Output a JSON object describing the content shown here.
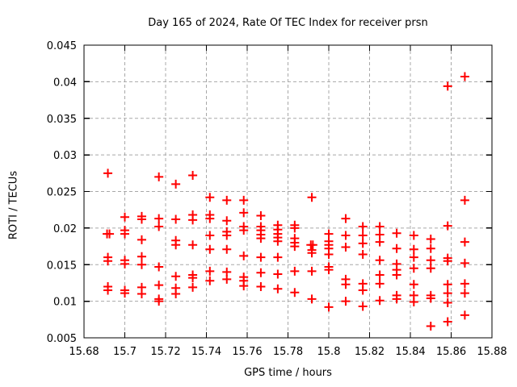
{
  "chart_data": {
    "type": "scatter",
    "title": "Day 165 of 2024, Rate Of TEC Index for receiver prsn",
    "xlabel": "GPS time / hours",
    "ylabel": "ROTI / TECUs",
    "xlim": [
      15.68,
      15.88
    ],
    "ylim": [
      0.005,
      0.045
    ],
    "xticks": [
      15.68,
      15.7,
      15.72,
      15.74,
      15.76,
      15.78,
      15.8,
      15.82,
      15.84,
      15.86,
      15.88
    ],
    "xtick_labels": [
      "15.68",
      "15.7",
      "15.72",
      "15.74",
      "15.76",
      "15.78",
      "15.8",
      "15.82",
      "15.84",
      "15.86",
      "15.88"
    ],
    "yticks": [
      0.005,
      0.01,
      0.015,
      0.02,
      0.025,
      0.03,
      0.035,
      0.04,
      0.045
    ],
    "ytick_labels": [
      "0.005",
      "0.01",
      "0.015",
      "0.02",
      "0.025",
      "0.03",
      "0.035",
      "0.04",
      "0.045"
    ],
    "grid": true,
    "legend": "none",
    "marker": {
      "shape": "plus",
      "color": "#ff0000",
      "size": 11,
      "stroke_width": 2
    },
    "grid_color": "#a8a8a8",
    "border_color": "#000000",
    "points": [
      [
        15.6917,
        0.0275
      ],
      [
        15.6913,
        0.0192
      ],
      [
        15.6925,
        0.0192
      ],
      [
        15.6917,
        0.016
      ],
      [
        15.6917,
        0.0155
      ],
      [
        15.6917,
        0.012
      ],
      [
        15.6917,
        0.0115
      ],
      [
        15.7,
        0.0215
      ],
      [
        15.7,
        0.0197
      ],
      [
        15.7,
        0.0192
      ],
      [
        15.7,
        0.0156
      ],
      [
        15.7,
        0.0151
      ],
      [
        15.7,
        0.0115
      ],
      [
        15.7,
        0.0111
      ],
      [
        15.7083,
        0.0216
      ],
      [
        15.7083,
        0.0212
      ],
      [
        15.7083,
        0.0184
      ],
      [
        15.7083,
        0.0161
      ],
      [
        15.7083,
        0.015
      ],
      [
        15.7083,
        0.0119
      ],
      [
        15.7083,
        0.011
      ],
      [
        15.7167,
        0.027
      ],
      [
        15.7167,
        0.0213
      ],
      [
        15.7167,
        0.0202
      ],
      [
        15.7167,
        0.0147
      ],
      [
        15.7167,
        0.0122
      ],
      [
        15.7167,
        0.0103
      ],
      [
        15.7167,
        0.01
      ],
      [
        15.725,
        0.026
      ],
      [
        15.725,
        0.0212
      ],
      [
        15.725,
        0.0183
      ],
      [
        15.725,
        0.0177
      ],
      [
        15.725,
        0.0134
      ],
      [
        15.725,
        0.0118
      ],
      [
        15.725,
        0.011
      ],
      [
        15.7333,
        0.0272
      ],
      [
        15.7333,
        0.0218
      ],
      [
        15.7333,
        0.0211
      ],
      [
        15.7333,
        0.0177
      ],
      [
        15.7333,
        0.0136
      ],
      [
        15.7333,
        0.0132
      ],
      [
        15.7333,
        0.0119
      ],
      [
        15.7417,
        0.0242
      ],
      [
        15.7417,
        0.0218
      ],
      [
        15.7417,
        0.0213
      ],
      [
        15.7417,
        0.019
      ],
      [
        15.7417,
        0.0171
      ],
      [
        15.7417,
        0.0141
      ],
      [
        15.7417,
        0.0128
      ],
      [
        15.75,
        0.0238
      ],
      [
        15.75,
        0.021
      ],
      [
        15.75,
        0.0195
      ],
      [
        15.75,
        0.019
      ],
      [
        15.75,
        0.0171
      ],
      [
        15.75,
        0.014
      ],
      [
        15.75,
        0.013
      ],
      [
        15.7583,
        0.0238
      ],
      [
        15.7583,
        0.0221
      ],
      [
        15.7583,
        0.0202
      ],
      [
        15.7583,
        0.0197
      ],
      [
        15.7583,
        0.0162
      ],
      [
        15.7583,
        0.0133
      ],
      [
        15.7583,
        0.0128
      ],
      [
        15.7583,
        0.0121
      ],
      [
        15.7667,
        0.0217
      ],
      [
        15.7667,
        0.0202
      ],
      [
        15.7667,
        0.0197
      ],
      [
        15.7667,
        0.0191
      ],
      [
        15.7667,
        0.0186
      ],
      [
        15.7667,
        0.016
      ],
      [
        15.7667,
        0.0139
      ],
      [
        15.7667,
        0.012
      ],
      [
        15.775,
        0.0204
      ],
      [
        15.775,
        0.0198
      ],
      [
        15.775,
        0.0192
      ],
      [
        15.775,
        0.0187
      ],
      [
        15.775,
        0.0182
      ],
      [
        15.775,
        0.016
      ],
      [
        15.775,
        0.0137
      ],
      [
        15.775,
        0.0117
      ],
      [
        15.7833,
        0.0204
      ],
      [
        15.7833,
        0.02
      ],
      [
        15.7833,
        0.0186
      ],
      [
        15.7833,
        0.018
      ],
      [
        15.7833,
        0.0175
      ],
      [
        15.7833,
        0.0141
      ],
      [
        15.7833,
        0.0112
      ],
      [
        15.7917,
        0.0242
      ],
      [
        15.7912,
        0.0177
      ],
      [
        15.7922,
        0.0177
      ],
      [
        15.7917,
        0.017
      ],
      [
        15.7917,
        0.0166
      ],
      [
        15.7917,
        0.0141
      ],
      [
        15.7917,
        0.0103
      ],
      [
        15.8,
        0.0192
      ],
      [
        15.8,
        0.0182
      ],
      [
        15.8,
        0.0177
      ],
      [
        15.8,
        0.0172
      ],
      [
        15.8,
        0.0164
      ],
      [
        15.8,
        0.0147
      ],
      [
        15.8,
        0.0143
      ],
      [
        15.8,
        0.0092
      ],
      [
        15.8083,
        0.0213
      ],
      [
        15.8083,
        0.019
      ],
      [
        15.8083,
        0.0174
      ],
      [
        15.8083,
        0.013
      ],
      [
        15.8083,
        0.0123
      ],
      [
        15.8083,
        0.01
      ],
      [
        15.8167,
        0.0202
      ],
      [
        15.8167,
        0.019
      ],
      [
        15.8167,
        0.0179
      ],
      [
        15.8167,
        0.0164
      ],
      [
        15.8167,
        0.0124
      ],
      [
        15.8167,
        0.0115
      ],
      [
        15.8167,
        0.0093
      ],
      [
        15.825,
        0.0202
      ],
      [
        15.825,
        0.0191
      ],
      [
        15.825,
        0.0181
      ],
      [
        15.825,
        0.0156
      ],
      [
        15.825,
        0.0136
      ],
      [
        15.825,
        0.0124
      ],
      [
        15.825,
        0.0101
      ],
      [
        15.8333,
        0.0193
      ],
      [
        15.8333,
        0.0172
      ],
      [
        15.8333,
        0.0151
      ],
      [
        15.8333,
        0.0143
      ],
      [
        15.8333,
        0.0136
      ],
      [
        15.8333,
        0.0108
      ],
      [
        15.8333,
        0.0103
      ],
      [
        15.8417,
        0.019
      ],
      [
        15.8417,
        0.0171
      ],
      [
        15.8417,
        0.016
      ],
      [
        15.8417,
        0.0145
      ],
      [
        15.8417,
        0.0123
      ],
      [
        15.8417,
        0.0108
      ],
      [
        15.8417,
        0.0099
      ],
      [
        15.85,
        0.0185
      ],
      [
        15.85,
        0.0172
      ],
      [
        15.85,
        0.0156
      ],
      [
        15.85,
        0.0145
      ],
      [
        15.85,
        0.0108
      ],
      [
        15.85,
        0.0104
      ],
      [
        15.85,
        0.0066
      ],
      [
        15.8583,
        0.0394
      ],
      [
        15.8583,
        0.0203
      ],
      [
        15.8583,
        0.0159
      ],
      [
        15.8583,
        0.0155
      ],
      [
        15.8583,
        0.0123
      ],
      [
        15.8583,
        0.0111
      ],
      [
        15.8583,
        0.0098
      ],
      [
        15.8583,
        0.0072
      ],
      [
        15.8667,
        0.0407
      ],
      [
        15.8667,
        0.0238
      ],
      [
        15.8667,
        0.0181
      ],
      [
        15.8667,
        0.0152
      ],
      [
        15.8667,
        0.0124
      ],
      [
        15.8667,
        0.0111
      ],
      [
        15.8667,
        0.0081
      ]
    ]
  }
}
